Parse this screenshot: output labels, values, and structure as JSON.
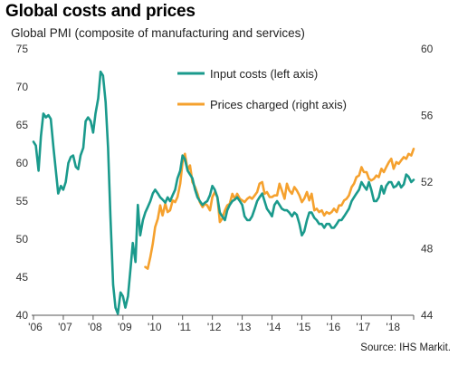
{
  "title": "Global costs and prices",
  "subtitle": "Global PMI (composite of manufacturing and services)",
  "source": "Source: IHS Markit.",
  "chart_data": {
    "type": "line",
    "xlim": [
      2006.0,
      2018.75
    ],
    "x_ticks": [
      2006,
      2007,
      2008,
      2009,
      2010,
      2011,
      2012,
      2013,
      2014,
      2015,
      2016,
      2017,
      2018
    ],
    "x_tick_labels": [
      "'06",
      "'07",
      "'08",
      "'09",
      "'10",
      "'11",
      "'12",
      "'13",
      "'14",
      "'15",
      "'16",
      "'17",
      "'18"
    ],
    "y_left": {
      "lim": [
        40,
        75
      ],
      "ticks": [
        40,
        45,
        50,
        55,
        60,
        65,
        70,
        75
      ]
    },
    "y_right": {
      "lim": [
        44,
        60
      ],
      "ticks": [
        44,
        48,
        52,
        56,
        60
      ]
    },
    "grid": false,
    "legend_position": "top-center",
    "series": [
      {
        "name": "Input costs (left axis)",
        "axis": "left",
        "color": "#1a9a8c",
        "points": [
          [
            2006.0,
            62.8
          ],
          [
            2006.08,
            62.3
          ],
          [
            2006.17,
            59.0
          ],
          [
            2006.25,
            63.5
          ],
          [
            2006.33,
            66.5
          ],
          [
            2006.42,
            66.0
          ],
          [
            2006.5,
            66.3
          ],
          [
            2006.58,
            65.8
          ],
          [
            2006.67,
            62.0
          ],
          [
            2006.75,
            59.0
          ],
          [
            2006.83,
            56.0
          ],
          [
            2006.92,
            57.0
          ],
          [
            2007.0,
            56.5
          ],
          [
            2007.08,
            57.5
          ],
          [
            2007.17,
            60.0
          ],
          [
            2007.25,
            60.8
          ],
          [
            2007.33,
            61.0
          ],
          [
            2007.42,
            59.5
          ],
          [
            2007.5,
            59.2
          ],
          [
            2007.58,
            61.0
          ],
          [
            2007.67,
            62.0
          ],
          [
            2007.75,
            65.5
          ],
          [
            2007.83,
            66.0
          ],
          [
            2007.92,
            65.5
          ],
          [
            2008.0,
            64.0
          ],
          [
            2008.08,
            66.5
          ],
          [
            2008.17,
            68.5
          ],
          [
            2008.25,
            72.0
          ],
          [
            2008.33,
            71.5
          ],
          [
            2008.42,
            68.0
          ],
          [
            2008.5,
            62.0
          ],
          [
            2008.58,
            53.0
          ],
          [
            2008.67,
            44.0
          ],
          [
            2008.75,
            41.0
          ],
          [
            2008.83,
            40.2
          ],
          [
            2008.92,
            43.0
          ],
          [
            2009.0,
            42.5
          ],
          [
            2009.08,
            41.0
          ],
          [
            2009.17,
            42.5
          ],
          [
            2009.25,
            46.0
          ],
          [
            2009.33,
            49.5
          ],
          [
            2009.42,
            47.0
          ],
          [
            2009.5,
            54.5
          ],
          [
            2009.58,
            50.5
          ],
          [
            2009.67,
            52.5
          ],
          [
            2009.75,
            53.5
          ],
          [
            2009.83,
            54.2
          ],
          [
            2009.92,
            55.0
          ],
          [
            2010.0,
            56.0
          ],
          [
            2010.08,
            56.5
          ],
          [
            2010.17,
            56.0
          ],
          [
            2010.25,
            55.5
          ],
          [
            2010.33,
            55.2
          ],
          [
            2010.42,
            54.8
          ],
          [
            2010.5,
            55.5
          ],
          [
            2010.58,
            55.0
          ],
          [
            2010.67,
            55.8
          ],
          [
            2010.75,
            56.5
          ],
          [
            2010.83,
            58.0
          ],
          [
            2010.92,
            59.0
          ],
          [
            2011.0,
            61.0
          ],
          [
            2011.08,
            60.5
          ],
          [
            2011.17,
            59.0
          ],
          [
            2011.25,
            58.5
          ],
          [
            2011.33,
            58.0
          ],
          [
            2011.42,
            56.5
          ],
          [
            2011.5,
            55.5
          ],
          [
            2011.58,
            55.0
          ],
          [
            2011.67,
            54.5
          ],
          [
            2011.75,
            54.8
          ],
          [
            2011.83,
            55.0
          ],
          [
            2011.92,
            55.8
          ],
          [
            2012.0,
            57.0
          ],
          [
            2012.08,
            56.5
          ],
          [
            2012.17,
            55.5
          ],
          [
            2012.25,
            53.5
          ],
          [
            2012.33,
            53.0
          ],
          [
            2012.42,
            52.5
          ],
          [
            2012.5,
            53.8
          ],
          [
            2012.58,
            54.5
          ],
          [
            2012.67,
            55.0
          ],
          [
            2012.75,
            55.2
          ],
          [
            2012.83,
            55.5
          ],
          [
            2012.92,
            55.0
          ],
          [
            2013.0,
            54.5
          ],
          [
            2013.08,
            53.0
          ],
          [
            2013.17,
            52.5
          ],
          [
            2013.25,
            52.5
          ],
          [
            2013.33,
            53.0
          ],
          [
            2013.42,
            54.0
          ],
          [
            2013.5,
            55.0
          ],
          [
            2013.58,
            55.5
          ],
          [
            2013.67,
            56.0
          ],
          [
            2013.75,
            55.0
          ],
          [
            2013.83,
            54.0
          ],
          [
            2013.92,
            53.5
          ],
          [
            2014.0,
            53.0
          ],
          [
            2014.08,
            54.5
          ],
          [
            2014.17,
            55.0
          ],
          [
            2014.25,
            54.5
          ],
          [
            2014.33,
            54.0
          ],
          [
            2014.42,
            53.8
          ],
          [
            2014.5,
            53.8
          ],
          [
            2014.58,
            53.5
          ],
          [
            2014.67,
            53.0
          ],
          [
            2014.75,
            53.5
          ],
          [
            2014.83,
            53.2
          ],
          [
            2014.92,
            52.0
          ],
          [
            2015.0,
            50.5
          ],
          [
            2015.08,
            51.0
          ],
          [
            2015.17,
            52.5
          ],
          [
            2015.25,
            53.5
          ],
          [
            2015.33,
            53.5
          ],
          [
            2015.42,
            52.8
          ],
          [
            2015.5,
            52.5
          ],
          [
            2015.58,
            52.0
          ],
          [
            2015.67,
            52.0
          ],
          [
            2015.75,
            51.5
          ],
          [
            2015.83,
            52.0
          ],
          [
            2015.92,
            52.0
          ],
          [
            2016.0,
            51.5
          ],
          [
            2016.08,
            51.5
          ],
          [
            2016.17,
            52.0
          ],
          [
            2016.25,
            52.5
          ],
          [
            2016.33,
            52.5
          ],
          [
            2016.42,
            53.0
          ],
          [
            2016.5,
            53.5
          ],
          [
            2016.58,
            54.0
          ],
          [
            2016.67,
            55.0
          ],
          [
            2016.75,
            55.5
          ],
          [
            2016.83,
            56.0
          ],
          [
            2016.92,
            56.5
          ],
          [
            2017.0,
            57.5
          ],
          [
            2017.08,
            57.0
          ],
          [
            2017.17,
            56.5
          ],
          [
            2017.25,
            57.5
          ],
          [
            2017.33,
            56.5
          ],
          [
            2017.42,
            55.0
          ],
          [
            2017.5,
            55.0
          ],
          [
            2017.58,
            55.5
          ],
          [
            2017.67,
            57.0
          ],
          [
            2017.75,
            56.0
          ],
          [
            2017.83,
            57.0
          ],
          [
            2017.92,
            57.5
          ],
          [
            2018.0,
            57.5
          ],
          [
            2018.08,
            56.8
          ],
          [
            2018.17,
            57.0
          ],
          [
            2018.25,
            57.5
          ],
          [
            2018.33,
            56.8
          ],
          [
            2018.42,
            57.2
          ],
          [
            2018.5,
            58.5
          ],
          [
            2018.58,
            58.2
          ],
          [
            2018.67,
            57.5
          ],
          [
            2018.75,
            57.8
          ]
        ]
      },
      {
        "name": "Prices charged (right axis)",
        "axis": "right",
        "color": "#f5a12e",
        "points": [
          [
            2009.75,
            46.9
          ],
          [
            2009.83,
            46.8
          ],
          [
            2009.92,
            47.5
          ],
          [
            2010.0,
            48.3
          ],
          [
            2010.08,
            49.3
          ],
          [
            2010.17,
            49.8
          ],
          [
            2010.25,
            50.6
          ],
          [
            2010.33,
            50.0
          ],
          [
            2010.42,
            50.7
          ],
          [
            2010.5,
            50.2
          ],
          [
            2010.58,
            50.3
          ],
          [
            2010.67,
            50.9
          ],
          [
            2010.75,
            50.8
          ],
          [
            2010.83,
            51.1
          ],
          [
            2010.92,
            51.9
          ],
          [
            2011.0,
            53.2
          ],
          [
            2011.08,
            53.7
          ],
          [
            2011.17,
            52.7
          ],
          [
            2011.25,
            53.0
          ],
          [
            2011.33,
            52.0
          ],
          [
            2011.42,
            51.7
          ],
          [
            2011.5,
            51.3
          ],
          [
            2011.58,
            50.8
          ],
          [
            2011.67,
            50.5
          ],
          [
            2011.75,
            50.7
          ],
          [
            2011.83,
            50.6
          ],
          [
            2011.92,
            50.3
          ],
          [
            2012.0,
            51.1
          ],
          [
            2012.08,
            51.4
          ],
          [
            2012.17,
            51.1
          ],
          [
            2012.25,
            49.6
          ],
          [
            2012.33,
            49.8
          ],
          [
            2012.42,
            50.3
          ],
          [
            2012.5,
            50.6
          ],
          [
            2012.58,
            50.7
          ],
          [
            2012.67,
            51.3
          ],
          [
            2012.75,
            51.0
          ],
          [
            2012.83,
            51.3
          ],
          [
            2012.92,
            51.0
          ],
          [
            2013.0,
            50.9
          ],
          [
            2013.08,
            50.8
          ],
          [
            2013.17,
            51.0
          ],
          [
            2013.25,
            51.1
          ],
          [
            2013.33,
            51.0
          ],
          [
            2013.42,
            51.2
          ],
          [
            2013.5,
            51.4
          ],
          [
            2013.58,
            51.9
          ],
          [
            2013.67,
            52.0
          ],
          [
            2013.75,
            51.3
          ],
          [
            2013.83,
            51.4
          ],
          [
            2013.92,
            51.1
          ],
          [
            2014.0,
            51.1
          ],
          [
            2014.08,
            51.2
          ],
          [
            2014.17,
            51.2
          ],
          [
            2014.25,
            51.9
          ],
          [
            2014.33,
            51.5
          ],
          [
            2014.42,
            51.0
          ],
          [
            2014.5,
            51.9
          ],
          [
            2014.58,
            51.5
          ],
          [
            2014.67,
            51.3
          ],
          [
            2014.75,
            51.7
          ],
          [
            2014.83,
            51.5
          ],
          [
            2014.92,
            51.2
          ],
          [
            2015.0,
            50.8
          ],
          [
            2015.08,
            51.0
          ],
          [
            2015.17,
            51.4
          ],
          [
            2015.25,
            50.9
          ],
          [
            2015.33,
            51.3
          ],
          [
            2015.42,
            50.3
          ],
          [
            2015.5,
            50.4
          ],
          [
            2015.58,
            50.2
          ],
          [
            2015.67,
            50.3
          ],
          [
            2015.75,
            50.0
          ],
          [
            2015.83,
            50.2
          ],
          [
            2015.92,
            50.1
          ],
          [
            2016.0,
            50.2
          ],
          [
            2016.08,
            50.4
          ],
          [
            2016.17,
            50.2
          ],
          [
            2016.25,
            50.6
          ],
          [
            2016.33,
            50.6
          ],
          [
            2016.42,
            50.9
          ],
          [
            2016.5,
            51.0
          ],
          [
            2016.58,
            51.2
          ],
          [
            2016.67,
            51.7
          ],
          [
            2016.75,
            51.9
          ],
          [
            2016.83,
            52.3
          ],
          [
            2016.92,
            52.4
          ],
          [
            2017.0,
            52.9
          ],
          [
            2017.08,
            52.6
          ],
          [
            2017.17,
            52.6
          ],
          [
            2017.25,
            52.2
          ],
          [
            2017.33,
            52.1
          ],
          [
            2017.42,
            52.2
          ],
          [
            2017.5,
            52.4
          ],
          [
            2017.58,
            52.3
          ],
          [
            2017.67,
            52.8
          ],
          [
            2017.75,
            52.6
          ],
          [
            2017.83,
            52.9
          ],
          [
            2017.92,
            53.2
          ],
          [
            2018.0,
            53.4
          ],
          [
            2018.08,
            52.8
          ],
          [
            2018.17,
            53.2
          ],
          [
            2018.25,
            53.1
          ],
          [
            2018.33,
            53.3
          ],
          [
            2018.42,
            53.5
          ],
          [
            2018.5,
            53.4
          ],
          [
            2018.58,
            53.7
          ],
          [
            2018.67,
            53.6
          ],
          [
            2018.75,
            54.0
          ]
        ]
      }
    ]
  }
}
